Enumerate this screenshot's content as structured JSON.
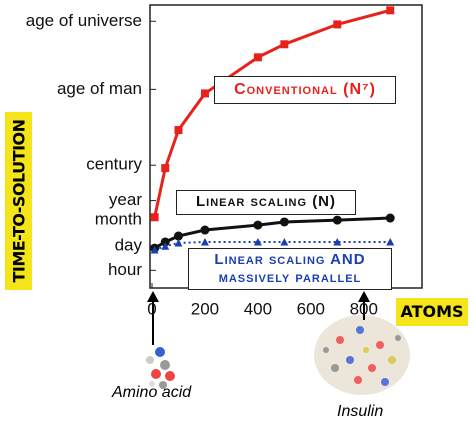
{
  "chart_data": {
    "type": "line",
    "x_label": "ATOMS",
    "y_label": "TIME-TO-SOLUTION",
    "ylog": true,
    "xlim": [
      0,
      1020
    ],
    "xticks": [
      0,
      200,
      400,
      600,
      800
    ],
    "ylim": [
      0.1,
      1000000000000000.0
    ],
    "yticks": [
      {
        "value": 1,
        "label": "hour"
      },
      {
        "value": 24,
        "label": "day"
      },
      {
        "value": 720,
        "label": "month"
      },
      {
        "value": 8760,
        "label": "year"
      },
      {
        "value": 876000,
        "label": "century"
      },
      {
        "value": 17000000000,
        "label": "age of man"
      },
      {
        "value": 120000000000000,
        "label": "age of universe"
      }
    ],
    "x": [
      10,
      50,
      100,
      200,
      400,
      500,
      700,
      900
    ],
    "series": [
      {
        "name": "Conventional (N⁷)",
        "color": "#e8221b",
        "marker": "square",
        "dash": false,
        "values": [
          1000,
          600000,
          85000000,
          10000000000,
          1100000000000,
          6000000000000,
          80000000000000,
          500000000000000
        ]
      },
      {
        "name": "Linear scaling (N)",
        "color": "#111111",
        "marker": "circle",
        "dash": false,
        "values": [
          18,
          40,
          87,
          190,
          360,
          540,
          690,
          900
        ]
      },
      {
        "name": "Linear scaling AND massively parallel",
        "color": "#1a3fb0",
        "marker": "triangle",
        "dash": true,
        "values": [
          14,
          23,
          35,
          40,
          40,
          40,
          40,
          40
        ]
      }
    ],
    "annotations": [
      "Amino acid",
      "Insulin"
    ]
  }
}
